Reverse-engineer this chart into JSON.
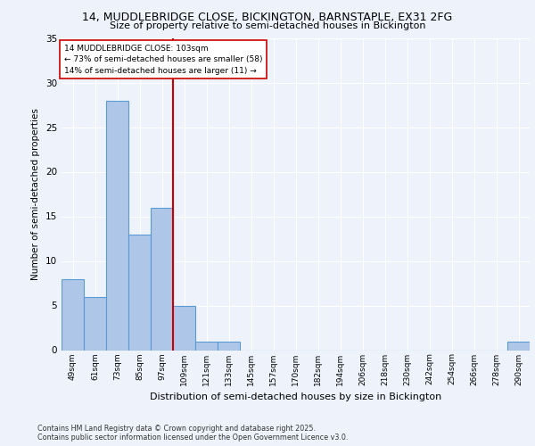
{
  "title1": "14, MUDDLEBRIDGE CLOSE, BICKINGTON, BARNSTAPLE, EX31 2FG",
  "title2": "Size of property relative to semi-detached houses in Bickington",
  "xlabel": "Distribution of semi-detached houses by size in Bickington",
  "ylabel": "Number of semi-detached properties",
  "annotation_title": "14 MUDDLEBRIDGE CLOSE: 103sqm",
  "annotation_line1": "← 73% of semi-detached houses are smaller (58)",
  "annotation_line2": "14% of semi-detached houses are larger (11) →",
  "bins": [
    "49sqm",
    "61sqm",
    "73sqm",
    "85sqm",
    "97sqm",
    "109sqm",
    "121sqm",
    "133sqm",
    "145sqm",
    "157sqm",
    "170sqm",
    "182sqm",
    "194sqm",
    "206sqm",
    "218sqm",
    "230sqm",
    "242sqm",
    "254sqm",
    "266sqm",
    "278sqm",
    "290sqm"
  ],
  "values": [
    8,
    6,
    28,
    13,
    16,
    5,
    1,
    1,
    0,
    0,
    0,
    0,
    0,
    0,
    0,
    0,
    0,
    0,
    0,
    0,
    1
  ],
  "bar_color": "#aec6e8",
  "bar_edge_color": "#5b9bd5",
  "highlight_line_color": "#cc0000",
  "annotation_box_color": "#ffffff",
  "annotation_box_edge": "#cc0000",
  "background_color": "#eef3fb",
  "grid_color": "#ffffff",
  "ylim": [
    0,
    35
  ],
  "yticks": [
    0,
    5,
    10,
    15,
    20,
    25,
    30,
    35
  ],
  "footer1": "Contains HM Land Registry data © Crown copyright and database right 2025.",
  "footer2": "Contains public sector information licensed under the Open Government Licence v3.0."
}
